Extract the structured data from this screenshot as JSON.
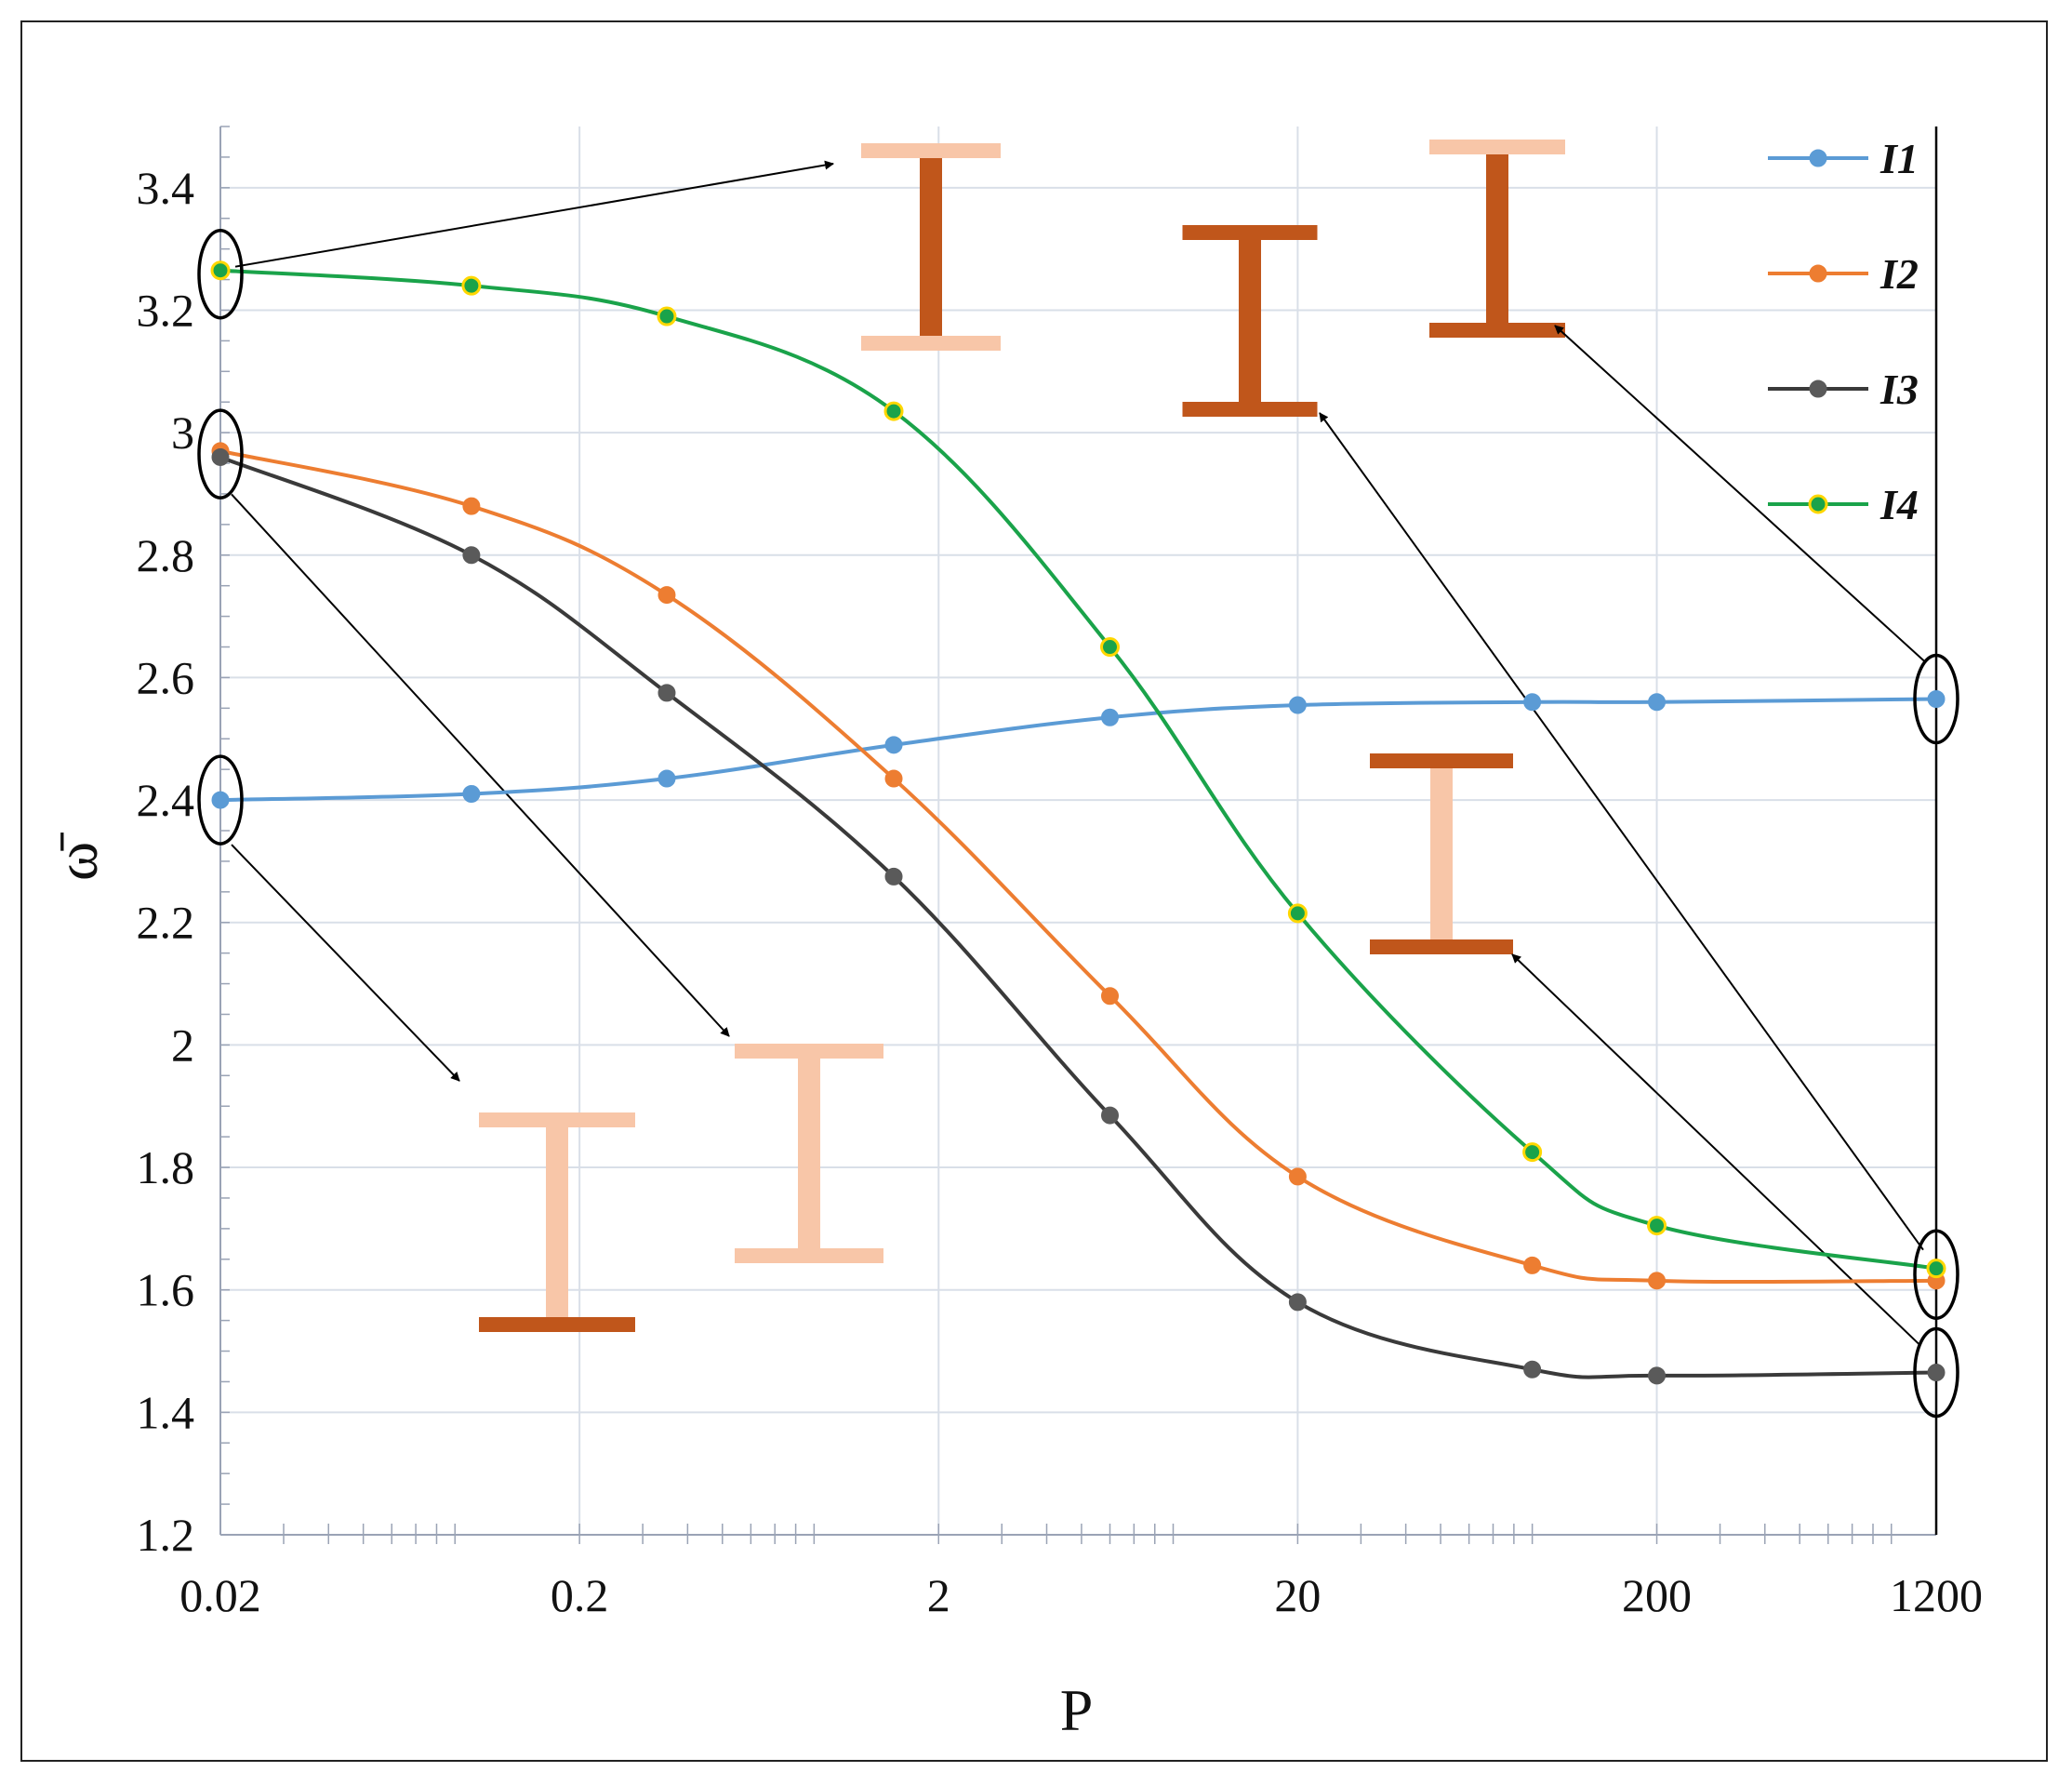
{
  "chart_data": {
    "type": "line",
    "xlabel": "P",
    "ylabel": "ω̄",
    "x_scale": "log",
    "xlim": [
      0.02,
      1200
    ],
    "ylim": [
      1.2,
      3.5
    ],
    "x_ticks": [
      0.02,
      0.2,
      2,
      20,
      200,
      1200
    ],
    "x_tick_labels": [
      "0.02",
      "0.2",
      "2",
      "20",
      "200",
      "1200"
    ],
    "y_ticks": [
      1.2,
      1.4,
      1.6,
      1.8,
      2,
      2.2,
      2.4,
      2.6,
      2.8,
      3,
      3.2,
      3.4
    ],
    "y_tick_labels": [
      "1.2",
      "1.4",
      "1.6",
      "1.8",
      "2",
      "2.2",
      "2.4",
      "2.6",
      "2.8",
      "3",
      "3.2",
      "3.4"
    ],
    "grid": true,
    "legend_position": "top-right",
    "x": [
      0.02,
      0.1,
      0.35,
      1.5,
      6,
      20,
      90,
      200,
      1200
    ],
    "series": [
      {
        "name": "I1",
        "color": "#5b9bd5",
        "marker_fill": "#5b9bd5",
        "values": [
          2.4,
          2.41,
          2.435,
          2.49,
          2.535,
          2.555,
          2.56,
          2.56,
          2.565
        ]
      },
      {
        "name": "I2",
        "color": "#ed7d31",
        "marker_fill": "#ed7d31",
        "values": [
          2.97,
          2.88,
          2.735,
          2.435,
          2.08,
          1.785,
          1.64,
          1.615,
          1.615
        ]
      },
      {
        "name": "I3",
        "color": "#3a3a3a",
        "marker_fill": "#5a5a5a",
        "values": [
          2.96,
          2.8,
          2.575,
          2.275,
          1.885,
          1.58,
          1.47,
          1.46,
          1.465
        ]
      },
      {
        "name": "I4",
        "color": "#1aa34a",
        "marker_fill": "#1aa34a",
        "marker_stroke": "#ffd700",
        "values": [
          3.265,
          3.24,
          3.19,
          3.035,
          2.65,
          2.215,
          1.825,
          1.705,
          1.635
        ]
      }
    ],
    "annotations": {
      "beam_colors": {
        "light": "#f8c6a8",
        "dark": "#c0561b"
      }
    }
  }
}
